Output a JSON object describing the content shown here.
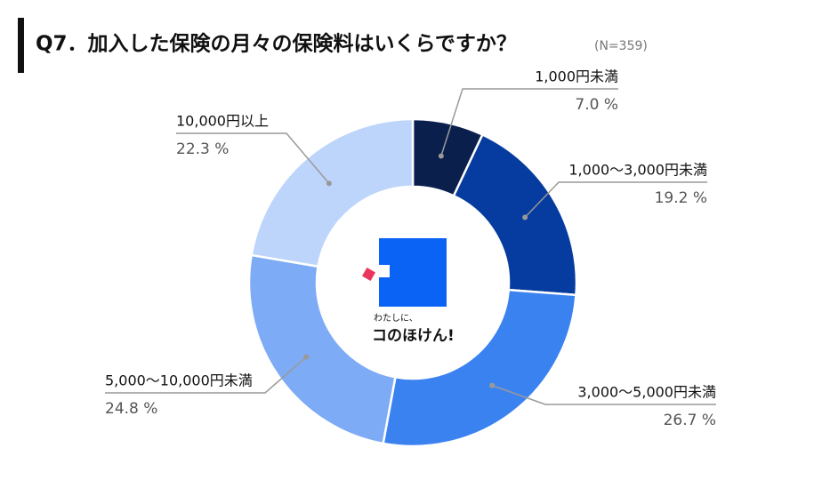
{
  "chart_data": {
    "type": "donut",
    "title": "Q7．加入した保険の月々の保険料はいくらですか？",
    "subtitle": "(N=359)",
    "categories": [
      "1,000円未満",
      "1,000〜3,000円未満",
      "3,000〜5,000円未満",
      "5,000〜10,000円未満",
      "10,000円以上"
    ],
    "values": [
      7.0,
      19.2,
      26.7,
      24.8,
      22.3
    ],
    "value_labels": [
      "7.0 %",
      "19.2 %",
      "26.7 %",
      "24.8 %",
      "22.3 %"
    ],
    "colors": [
      "#0b1f4d",
      "#063c9f",
      "#3b82f1",
      "#7eabf5",
      "#bed5fb"
    ]
  },
  "logo": {
    "tagline": "わたしに、",
    "name": "コのほけん!"
  }
}
